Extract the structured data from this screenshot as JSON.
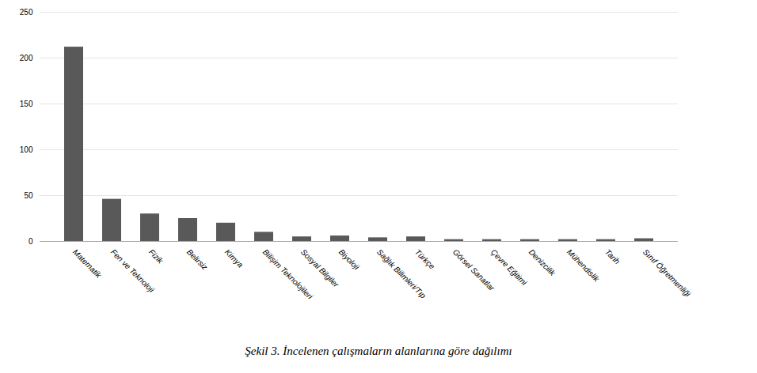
{
  "chart_data": {
    "type": "bar",
    "title": "Şekil 3. İncelenen çalışmaların alanlarına göre dağılımı",
    "categories": [
      "Matematik",
      "Fen ve Teknoloji",
      "Fizik",
      "Belirsiz",
      "Kimya",
      "Bilişim Teknolojileri",
      "Sosyal Bilgiler",
      "Biyoloji",
      "Sağlık Bilimleri/Tıp",
      "Türkçe",
      "Görsel Sanatlar",
      "Çevre Eğitimi",
      "Denizcilik",
      "Mühendislik",
      "Tarih",
      "Sınıf Öğretmenliği"
    ],
    "values": [
      212,
      46,
      30,
      25,
      20,
      10,
      5,
      6,
      4,
      5,
      2,
      2,
      2,
      2,
      2,
      3
    ],
    "color": "#595959",
    "ylim": [
      0,
      250
    ],
    "yticks": [
      0,
      50,
      100,
      150,
      200,
      250
    ],
    "grid": true
  }
}
